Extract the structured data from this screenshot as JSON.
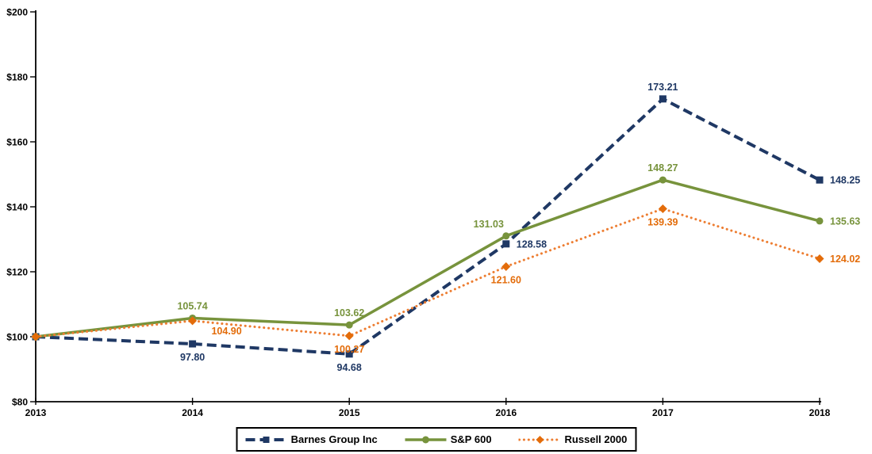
{
  "chart_data": {
    "type": "line",
    "title": "",
    "x_categories": [
      "2013",
      "2014",
      "2015",
      "2016",
      "2017",
      "2018"
    ],
    "y_axis": {
      "min": 80,
      "max": 200,
      "step": 20,
      "prefix": "$",
      "tick_labels": [
        "$200",
        "$180",
        "$160",
        "$140",
        "$120",
        "$100",
        "$80"
      ]
    },
    "grid": "off",
    "legend_position": "bottom",
    "axis_color": "#000000",
    "series": [
      {
        "name": "Barnes Group Inc",
        "color": "#1F3864",
        "line_style": "dashed",
        "marker": "square",
        "values": [
          100,
          97.8,
          94.68,
          128.58,
          173.21,
          148.25
        ],
        "point_labels": [
          "",
          "97.80",
          "94.68",
          "128.58",
          "173.21",
          "148.25"
        ],
        "label_positions": [
          "none",
          "below",
          "below",
          "right",
          "above",
          "right"
        ]
      },
      {
        "name": "S&P 600",
        "color": "#77933C",
        "line_style": "solid",
        "marker": "circle",
        "values": [
          100,
          105.74,
          103.62,
          131.03,
          148.27,
          135.63
        ],
        "point_labels": [
          "",
          "105.74",
          "103.62",
          "131.03",
          "148.27",
          "135.63"
        ],
        "label_positions": [
          "none",
          "above",
          "above",
          "above-left",
          "above",
          "right"
        ]
      },
      {
        "name": "Russell 2000",
        "color": "#E36C0A",
        "line_color": "#ED7D31",
        "line_style": "dotted",
        "marker": "diamond",
        "values": [
          100,
          104.9,
          100.27,
          121.6,
          139.39,
          124.02
        ],
        "point_labels": [
          "",
          "104.90",
          "100.27",
          "121.60",
          "139.39",
          "124.02"
        ],
        "label_positions": [
          "none",
          "below-right",
          "below",
          "below",
          "below",
          "right"
        ]
      }
    ]
  }
}
